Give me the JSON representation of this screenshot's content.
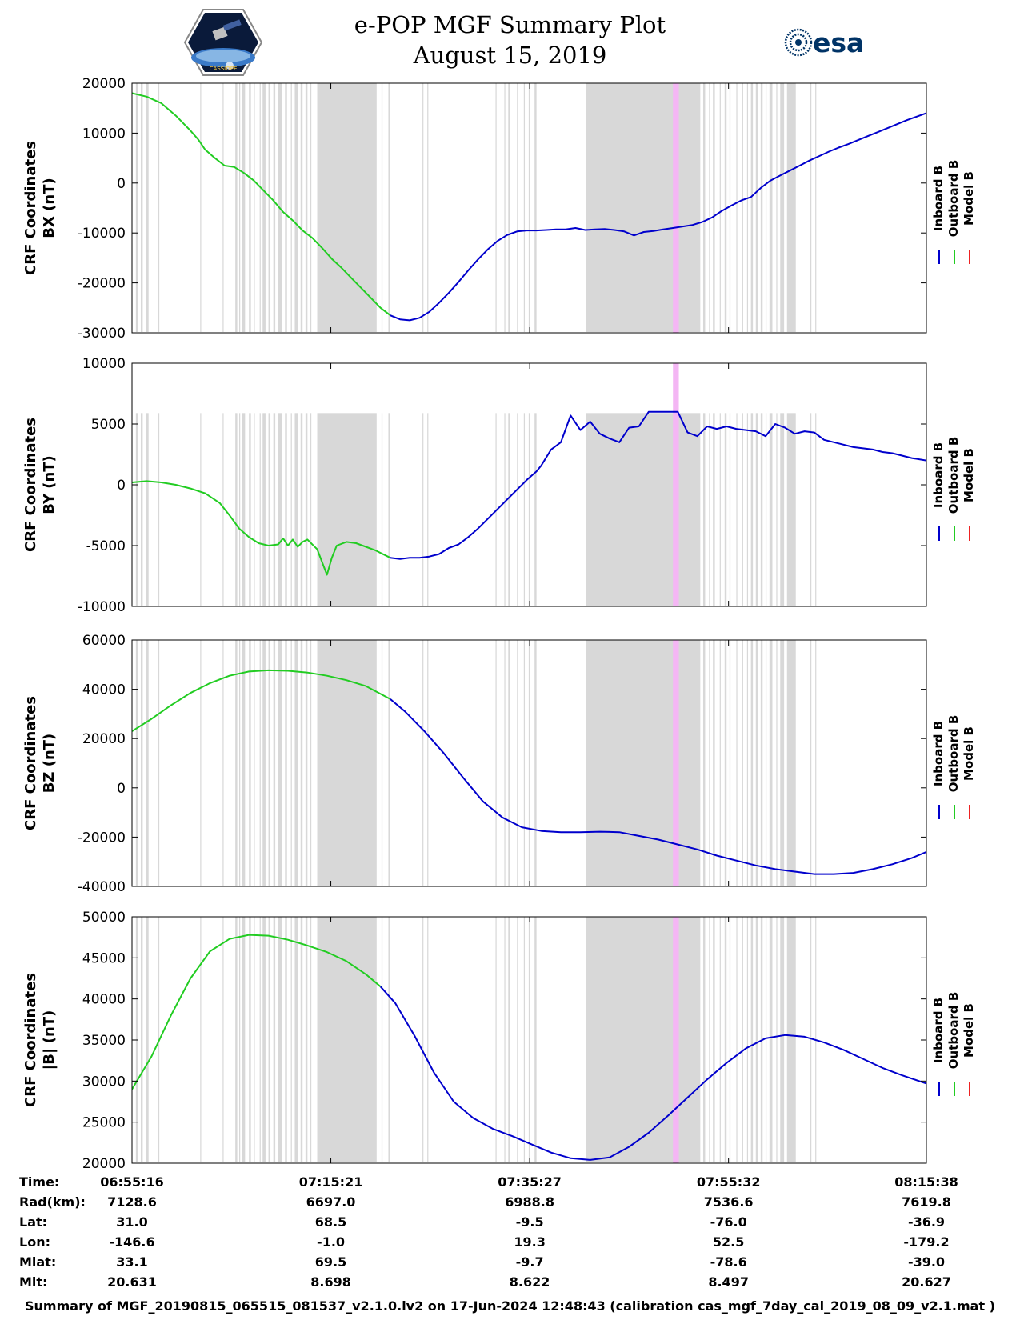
{
  "title": {
    "line1": "e-POP MGF Summary Plot",
    "line2": "August 15, 2019"
  },
  "logos": {
    "left": {
      "name": "cassiope-logo",
      "text": "CASSIOPE"
    },
    "right": {
      "name": "esa-logo",
      "text": "esa"
    }
  },
  "legend": {
    "labels": [
      "Inboard B",
      "Outboard B",
      "Model B"
    ],
    "colors": [
      "#0000cc",
      "#22cc22",
      "#ee2222"
    ]
  },
  "chart_data": [
    {
      "type": "line",
      "id": "bx",
      "ylabel_line1": "CRF Coordinates",
      "ylabel_line2": "BX (nT)",
      "ylim": [
        -30000,
        20000
      ],
      "yticks": [
        "20000",
        "10000",
        "0",
        "-10000",
        "-20000",
        "-30000"
      ],
      "series": [
        {
          "name": "Outboard B",
          "color": "#22cc22",
          "x": [
            0,
            1.5,
            3,
            4.5,
            6,
            6.8,
            7.5,
            8.5,
            9.5,
            10.5,
            11.5,
            12.5,
            13.5,
            14.5,
            15.5,
            16.5,
            17.5,
            18.5,
            19.5,
            20.5,
            21.5,
            22.5,
            23.5,
            24.5,
            25.5,
            26.5
          ],
          "values": [
            18000,
            17300,
            16000,
            13500,
            10500,
            8700,
            6700,
            5000,
            3500,
            3200,
            2000,
            500,
            -1500,
            -3500,
            -5800,
            -7500,
            -9500,
            -11000,
            -13000,
            -15200,
            -17000,
            -19000,
            -21000,
            -23000,
            -25000,
            -26500
          ]
        },
        {
          "name": "Inboard B",
          "color": "#0000cc",
          "x": [
            26.5,
            27.5,
            28.5,
            29.5,
            30.5,
            31.5,
            32.5,
            33.5,
            34.5,
            35.5,
            36.5,
            37.5,
            38.5,
            39.5,
            40.5,
            41.5,
            42.5,
            43.5,
            44.5,
            45.5,
            46.5,
            47.5,
            48.5,
            49.5,
            50.5,
            51.5,
            52.5,
            53.5,
            54.5,
            55.5,
            56.5,
            57.5,
            58.5,
            59.5,
            60.5,
            61.5,
            62.5,
            63.5,
            64.5,
            65.5,
            66.5,
            67.5,
            68.5,
            69.5,
            70.5,
            71.5,
            72.5,
            73.5,
            74.5,
            75.5,
            76.5,
            77.5,
            78.5,
            79.5,
            80.5,
            81.5
          ],
          "values": [
            -26500,
            -27300,
            -27500,
            -27000,
            -25800,
            -24000,
            -22000,
            -19800,
            -17500,
            -15300,
            -13300,
            -11600,
            -10400,
            -9700,
            -9500,
            -9500,
            -9400,
            -9300,
            -9300,
            -9000,
            -9400,
            -9300,
            -9200,
            -9400,
            -9700,
            -10500,
            -9800,
            -9600,
            -9300,
            -9000,
            -8700,
            -8400,
            -7800,
            -6900,
            -5600,
            -4500,
            -3500,
            -2800,
            -1000,
            500,
            1500,
            2500,
            3500,
            4500,
            5400,
            6300,
            7100,
            7800,
            8600,
            9400,
            10200,
            11000,
            11800,
            12600,
            13300,
            14000
          ]
        }
      ],
      "pink_band": [
        55.5,
        56.1
      ],
      "gray_top_value": 20000
    },
    {
      "type": "line",
      "id": "by",
      "ylabel_line1": "CRF Coordinates",
      "ylabel_line2": "BY (nT)",
      "ylim": [
        -10000,
        10000
      ],
      "yticks": [
        "10000",
        "5000",
        "0",
        "-5000",
        "-10000"
      ],
      "series": [
        {
          "name": "Outboard B",
          "color": "#22cc22",
          "x": [
            0,
            1.5,
            3,
            4.5,
            6,
            7.5,
            9,
            10,
            11,
            12,
            13,
            14,
            15,
            15.5,
            16,
            16.5,
            17,
            17.5,
            18,
            19,
            20,
            20.5,
            21,
            22,
            23,
            24,
            25,
            26,
            26.5
          ],
          "values": [
            200,
            300,
            200,
            0,
            -300,
            -700,
            -1500,
            -2500,
            -3600,
            -4300,
            -4800,
            -5000,
            -4900,
            -4400,
            -5000,
            -4500,
            -5100,
            -4700,
            -4500,
            -5300,
            -7400,
            -6000,
            -5000,
            -4700,
            -4800,
            -5100,
            -5400,
            -5800,
            -6000
          ]
        },
        {
          "name": "Inboard B",
          "color": "#0000cc",
          "x": [
            26.5,
            27.5,
            28.5,
            29.5,
            30.5,
            31.5,
            32.5,
            33.5,
            34.5,
            35.5,
            36.5,
            37.5,
            38.5,
            39.5,
            40.5,
            41.5,
            42,
            43,
            44,
            45,
            46,
            47,
            48,
            49,
            50,
            51,
            52,
            53,
            54,
            55,
            56,
            57,
            58,
            59,
            60,
            61,
            62,
            63,
            64,
            65,
            66,
            67,
            68,
            69,
            70,
            71,
            72,
            73,
            74,
            75,
            76,
            77,
            78,
            79,
            80,
            81.5
          ],
          "values": [
            -6000,
            -6100,
            -6000,
            -6000,
            -5900,
            -5700,
            -5200,
            -4900,
            -4300,
            -3600,
            -2800,
            -2000,
            -1200,
            -400,
            400,
            1100,
            1600,
            2900,
            3500,
            5700,
            4500,
            5200,
            4200,
            3800,
            3500,
            4700,
            4800,
            6000,
            6000,
            6000,
            6000,
            4300,
            4000,
            4800,
            4600,
            4800,
            4600,
            4500,
            4400,
            4000,
            5000,
            4700,
            4200,
            4400,
            4300,
            3700,
            3500,
            3300,
            3100,
            3000,
            2900,
            2700,
            2600,
            2400,
            2200,
            2000
          ]
        }
      ],
      "pink_band": [
        55.5,
        56.1
      ],
      "gray_top_value": 5900
    },
    {
      "type": "line",
      "id": "bz",
      "ylabel_line1": "CRF Coordinates",
      "ylabel_line2": "BZ (nT)",
      "ylim": [
        -40000,
        60000
      ],
      "yticks": [
        "60000",
        "40000",
        "20000",
        "0",
        "-20000",
        "-40000"
      ],
      "series": [
        {
          "name": "Outboard B",
          "color": "#22cc22",
          "x": [
            0,
            2,
            4,
            6,
            8,
            10,
            12,
            14,
            16,
            18,
            20,
            22,
            24,
            26.5
          ],
          "values": [
            23000,
            28000,
            33500,
            38500,
            42500,
            45500,
            47200,
            47700,
            47500,
            46800,
            45500,
            43700,
            41300,
            36000
          ]
        },
        {
          "name": "Inboard B",
          "color": "#0000cc",
          "x": [
            26.5,
            28,
            30,
            32,
            34,
            36,
            38,
            40,
            42,
            44,
            46,
            48,
            50,
            52,
            54,
            56,
            58,
            60,
            62,
            64,
            66,
            68,
            70,
            72,
            74,
            76,
            78,
            80,
            81.5
          ],
          "values": [
            36000,
            31000,
            23000,
            14000,
            4000,
            -5500,
            -12000,
            -16000,
            -17500,
            -18000,
            -18000,
            -17800,
            -18000,
            -19500,
            -21000,
            -23000,
            -25000,
            -27500,
            -29500,
            -31500,
            -33000,
            -34000,
            -35000,
            -35000,
            -34500,
            -33000,
            -31000,
            -28500,
            -26000
          ]
        }
      ],
      "pink_band": [
        55.5,
        56.1
      ],
      "gray_top_value": 60000
    },
    {
      "type": "line",
      "id": "babs",
      "ylabel_line1": "CRF Coordinates",
      "ylabel_line2": "|B| (nT)",
      "ylim": [
        20000,
        50000
      ],
      "yticks": [
        "50000",
        "45000",
        "40000",
        "35000",
        "30000",
        "25000",
        "20000"
      ],
      "series": [
        {
          "name": "Outboard B",
          "color": "#22cc22",
          "x": [
            0,
            2,
            4,
            6,
            8,
            10,
            12,
            14,
            16,
            18,
            20,
            22,
            24,
            25.5
          ],
          "values": [
            29000,
            33000,
            38000,
            42500,
            45800,
            47300,
            47800,
            47700,
            47200,
            46500,
            45700,
            44600,
            43000,
            41500
          ]
        },
        {
          "name": "Inboard B",
          "color": "#0000cc",
          "x": [
            25.5,
            27,
            29,
            31,
            33,
            35,
            37,
            39,
            41,
            43,
            45,
            47,
            49,
            51,
            53,
            55,
            57,
            59,
            61,
            63,
            65,
            67,
            69,
            71,
            73,
            75,
            77,
            79,
            81.5
          ],
          "values": [
            41500,
            39500,
            35500,
            31000,
            27500,
            25500,
            24200,
            23300,
            22300,
            21300,
            20600,
            20400,
            20700,
            22000,
            23700,
            25800,
            28000,
            30200,
            32200,
            34000,
            35200,
            35600,
            35400,
            34700,
            33800,
            32700,
            31600,
            30700,
            29700
          ]
        }
      ],
      "pink_band": [
        55.5,
        56.1
      ],
      "gray_top_value": 50000
    }
  ],
  "x_axis": {
    "range": [
      0,
      81.5
    ],
    "tick_positions": [
      0,
      20.4,
      40.8,
      61.2,
      81.5
    ]
  },
  "gray_bands": [
    [
      0.4,
      0.6
    ],
    [
      0.9,
      1.1
    ],
    [
      1.4,
      1.7
    ],
    [
      2.7,
      2.8
    ],
    [
      7,
      7.1
    ],
    [
      9.3,
      9.4
    ],
    [
      10.6,
      10.8
    ],
    [
      11,
      11.1
    ],
    [
      11.3,
      11.6
    ],
    [
      12,
      12.2
    ],
    [
      12.5,
      12.6
    ],
    [
      13.1,
      13.2
    ],
    [
      13.4,
      13.7
    ],
    [
      14,
      14.2
    ],
    [
      14.5,
      14.7
    ],
    [
      15,
      15.4
    ],
    [
      15.7,
      15.9
    ],
    [
      16.3,
      16.4
    ],
    [
      16.7,
      17
    ],
    [
      17.3,
      17.5
    ],
    [
      17.8,
      18
    ],
    [
      18.3,
      18.4
    ],
    [
      19,
      25.1
    ],
    [
      25.6,
      25.7
    ],
    [
      26.3,
      26.5
    ],
    [
      29.8,
      29.9
    ],
    [
      30.3,
      30.4
    ],
    [
      37.3,
      37.4
    ],
    [
      38.2,
      38.3
    ],
    [
      38.6,
      38.8
    ],
    [
      39.5,
      39.6
    ],
    [
      40.2,
      40.3
    ],
    [
      40.7,
      40.8
    ],
    [
      41.3,
      41.5
    ],
    [
      46.6,
      58.3
    ],
    [
      58.6,
      58.8
    ],
    [
      59.2,
      59.3
    ],
    [
      59.6,
      59.8
    ],
    [
      60.3,
      60.4
    ],
    [
      60.8,
      61
    ],
    [
      61.3,
      61.4
    ],
    [
      62,
      62.1
    ],
    [
      62.6,
      62.7
    ],
    [
      63.1,
      63.2
    ],
    [
      63.5,
      63.7
    ],
    [
      64,
      64.2
    ],
    [
      64.5,
      64.7
    ],
    [
      65,
      65.1
    ],
    [
      65.4,
      65.7
    ],
    [
      66.1,
      66.2
    ],
    [
      66.5,
      66.9
    ],
    [
      67.2,
      68.1
    ],
    [
      69.6,
      69.7
    ],
    [
      70.1,
      70.2
    ]
  ],
  "info_table": {
    "labels": [
      "Time:",
      "Rad(km):",
      "Lat:",
      "Lon:",
      "Mlat:",
      "Mlt:"
    ],
    "columns": [
      [
        "06:55:16",
        "7128.6",
        "31.0",
        "-146.6",
        "33.1",
        "20.631"
      ],
      [
        "07:15:21",
        "6697.0",
        "68.5",
        "-1.0",
        "69.5",
        "8.698"
      ],
      [
        "07:35:27",
        "6988.8",
        "-9.5",
        "19.3",
        "-9.7",
        "8.622"
      ],
      [
        "07:55:32",
        "7536.6",
        "-76.0",
        "52.5",
        "-78.6",
        "8.497"
      ],
      [
        "08:15:38",
        "7619.8",
        "-36.9",
        "-179.2",
        "-39.0",
        "20.627"
      ]
    ]
  },
  "footer": "Summary of MGF_20190815_065515_081537_v2.1.0.lv2 on 17-Jun-2024 12:48:43 (calibration cas_mgf_7day_cal_2019_08_09_v2.1.mat )"
}
